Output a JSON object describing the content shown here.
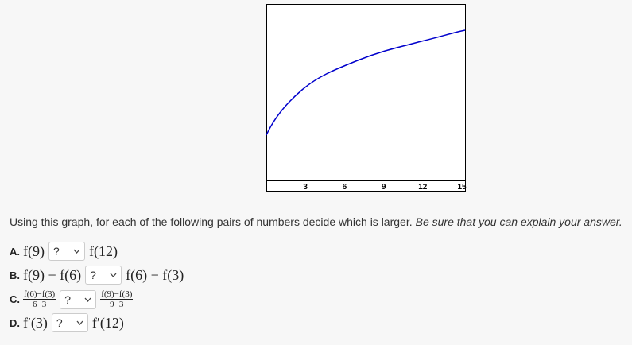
{
  "graph": {
    "xticks": [
      3,
      6,
      9,
      12,
      15
    ]
  },
  "prompt": {
    "text": "Using this graph, for each of the following pairs of numbers decide which is larger.",
    "emphasis": "Be sure that you can explain your answer."
  },
  "questions": [
    {
      "label": "A.",
      "left": "f(9)",
      "select": "?",
      "right": "f(12)"
    },
    {
      "label": "B.",
      "left": "f(9) − f(6)",
      "select": "?",
      "right": "f(6) − f(3)"
    },
    {
      "label": "C.",
      "left": {
        "numerator": "f(6)−f(3)",
        "denominator": "6−3"
      },
      "select": "?",
      "right": {
        "numerator": "f(9)−f(3)",
        "denominator": "9−3"
      }
    },
    {
      "label": "D.",
      "left": "f′(3)",
      "select": "?",
      "right": "f′(12)"
    }
  ]
}
